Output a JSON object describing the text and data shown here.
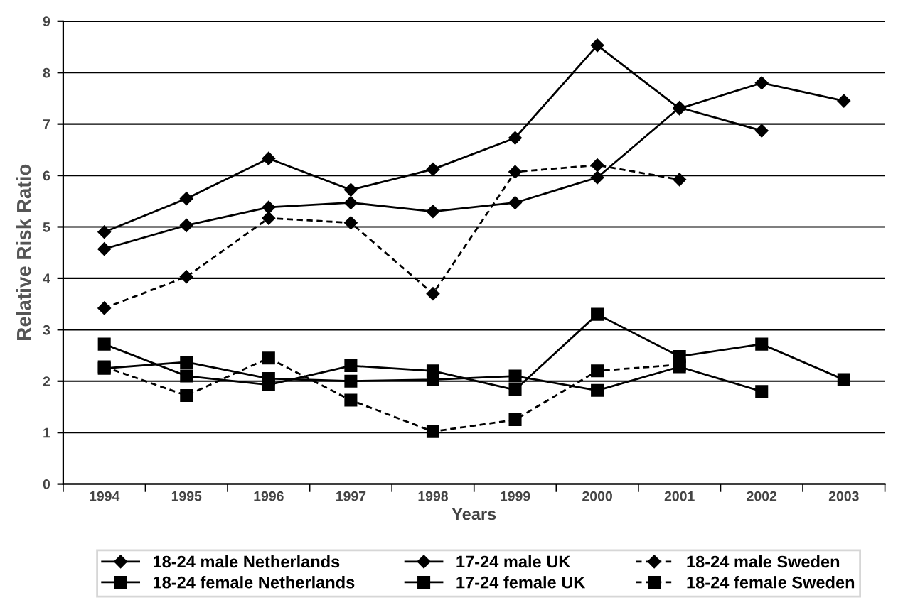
{
  "chart_data": {
    "type": "line",
    "xlabel": "Years",
    "ylabel": "Relative Risk Ratio",
    "categories": [
      "1994",
      "1995",
      "1996",
      "1997",
      "1998",
      "1999",
      "2000",
      "2001",
      "2002",
      "2003"
    ],
    "ylim": [
      0,
      9
    ],
    "yticks": [
      0,
      1,
      2,
      3,
      4,
      5,
      6,
      7,
      8,
      9
    ],
    "grid": "y",
    "legend": "bottom",
    "series": [
      {
        "name": "18-24 male Netherlands",
        "color": "#000000",
        "marker": "diamond",
        "line_style": "solid",
        "values": [
          4.9,
          5.55,
          6.33,
          5.72,
          6.12,
          6.73,
          8.53,
          7.3,
          7.8,
          7.45
        ]
      },
      {
        "name": "18-24 female Netherlands",
        "color": "#000000",
        "marker": "square",
        "line_style": "solid",
        "values": [
          2.72,
          2.1,
          1.93,
          2.3,
          2.2,
          1.83,
          3.3,
          2.48,
          2.72,
          2.03
        ]
      },
      {
        "name": "17-24 male UK",
        "color": "#000000",
        "marker": "diamond",
        "line_style": "solid",
        "values": [
          4.57,
          5.03,
          5.38,
          5.47,
          5.3,
          5.47,
          5.96,
          7.32,
          6.87,
          null
        ]
      },
      {
        "name": "17-24 female UK",
        "color": "#000000",
        "marker": "square",
        "line_style": "solid",
        "values": [
          2.25,
          2.37,
          2.05,
          2.0,
          2.03,
          2.1,
          1.82,
          2.28,
          1.8,
          null
        ]
      },
      {
        "name": "18-24 male Sweden",
        "color": "#000000",
        "marker": "diamond",
        "line_style": "dashed",
        "values": [
          3.42,
          4.03,
          5.17,
          5.08,
          3.7,
          6.07,
          6.2,
          5.92,
          null,
          null
        ]
      },
      {
        "name": "18-24 female Sweden",
        "color": "#000000",
        "marker": "square",
        "line_style": "dashed",
        "values": [
          2.28,
          1.72,
          2.45,
          1.63,
          1.02,
          1.25,
          2.2,
          2.32,
          null,
          null
        ]
      }
    ]
  }
}
